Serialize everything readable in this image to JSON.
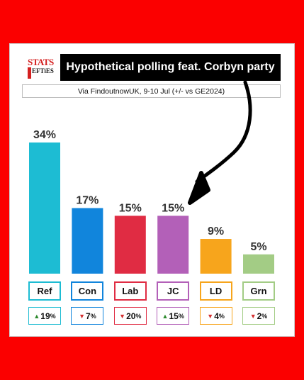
{
  "header": {
    "logo_line1": "STATS",
    "logo_line2": "EFTiES",
    "title": "Hypothetical polling feat. Corbyn party",
    "subtitle": "Via FindoutnowUK, 9-10 Jul (+/- vs GE2024)"
  },
  "colors": {
    "background": "#fb0000",
    "title_bg": "#000000"
  },
  "chart_data": {
    "type": "bar",
    "ylim": [
      0,
      34
    ],
    "categories": [
      "Ref",
      "Con",
      "Lab",
      "JC",
      "LD",
      "Grn"
    ],
    "values": [
      34,
      17,
      15,
      15,
      9,
      5
    ],
    "value_labels": [
      "34%",
      "17%",
      "15%",
      "15%",
      "9%",
      "5%"
    ],
    "changes": [
      {
        "dir": "up",
        "value": "19",
        "unit": "%"
      },
      {
        "dir": "down",
        "value": "7",
        "unit": "%"
      },
      {
        "dir": "down",
        "value": "20",
        "unit": "%"
      },
      {
        "dir": "up",
        "value": "15",
        "unit": "%"
      },
      {
        "dir": "down",
        "value": "4",
        "unit": "%"
      },
      {
        "dir": "down",
        "value": "2",
        "unit": "%"
      }
    ],
    "colors": [
      "#1dbcd3",
      "#1185dc",
      "#e02c43",
      "#b360b8",
      "#f7a51c",
      "#a3cc85"
    ],
    "arrow_icon": "curved-arrow-icon",
    "up_color": "#2d8a2d",
    "down_color": "#d43030"
  }
}
